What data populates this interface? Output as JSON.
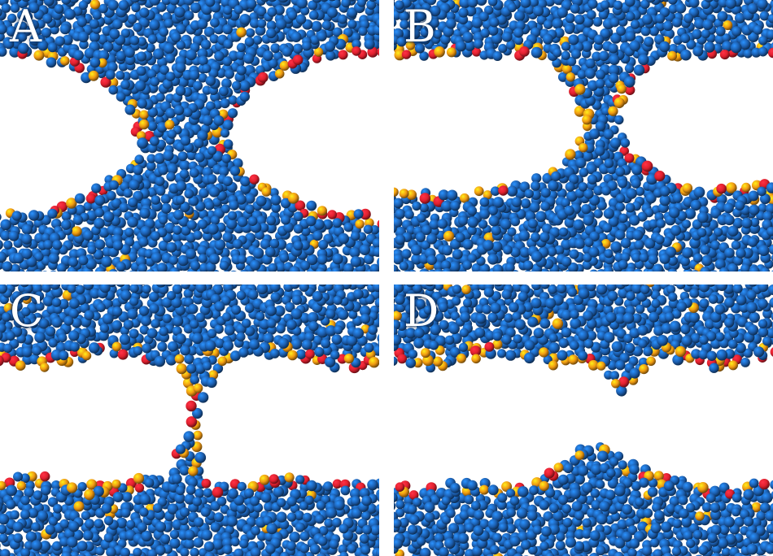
{
  "figure": {
    "panels": [
      {
        "label": "A",
        "stage": "wide-neck"
      },
      {
        "label": "B",
        "stage": "narrow-neck"
      },
      {
        "label": "C",
        "stage": "single-chain-bridge"
      },
      {
        "label": "D",
        "stage": "ruptured"
      }
    ],
    "colors": {
      "background": "#ffffff",
      "bead_blue": "#1c5fb0",
      "bead_orange": "#f09a12",
      "bead_red": "#e0202e",
      "label_text": "#ffffff"
    }
  }
}
